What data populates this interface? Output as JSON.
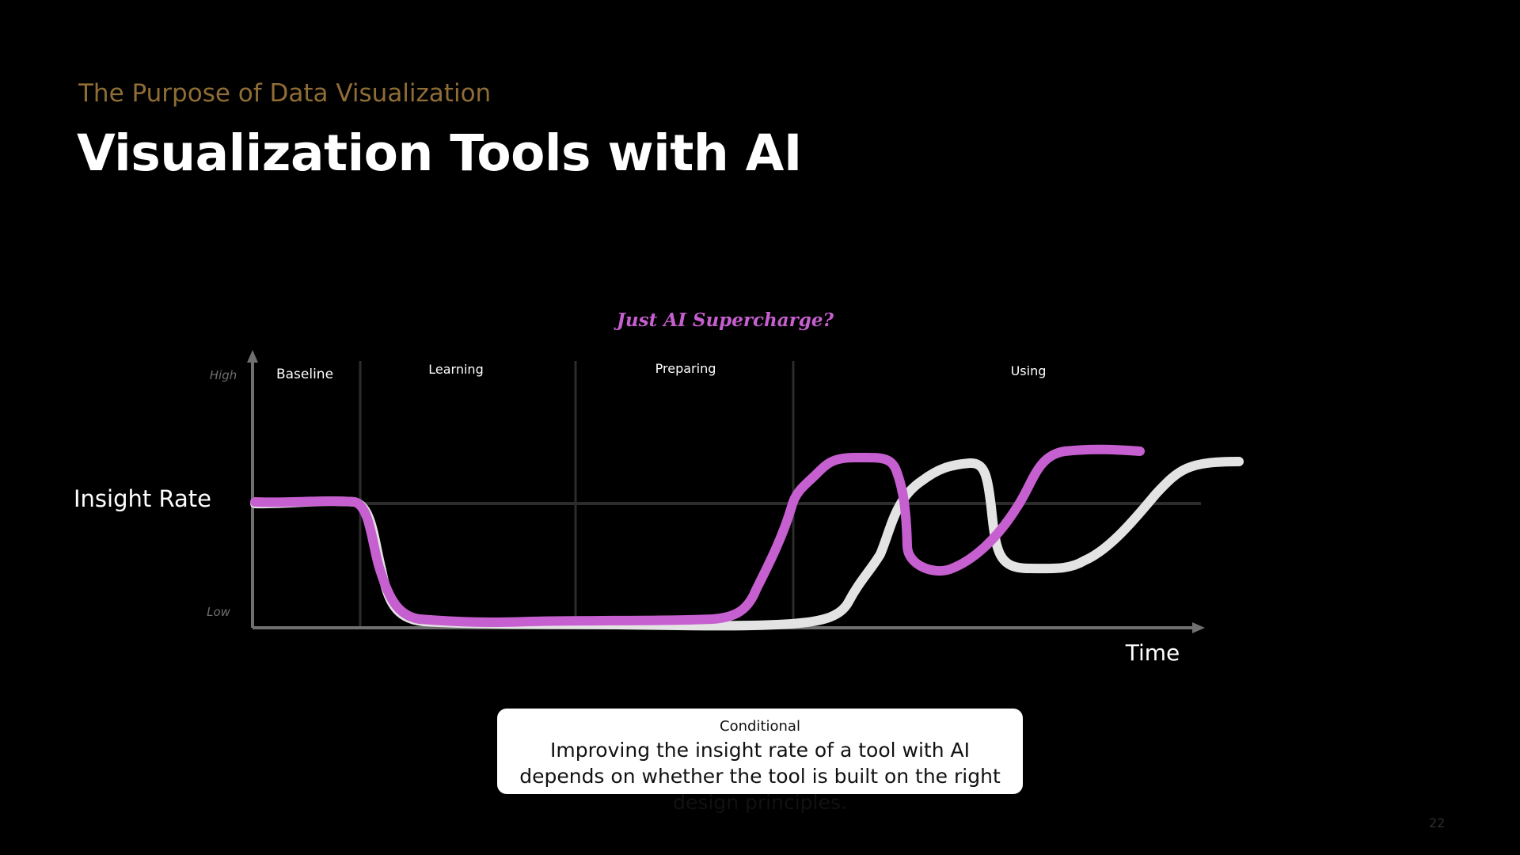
{
  "slide": {
    "kicker": "The Purpose of Data Visualization",
    "title": "Visualization Tools with AI",
    "page_number": "22"
  },
  "chart": {
    "title": "Just AI Supercharge?",
    "y_axis_label": "Insight Rate",
    "x_axis_label": "Time",
    "y_high_label": "High",
    "y_low_label": "Low",
    "phases": [
      "Baseline",
      "Learning",
      "Preparing",
      "Using"
    ]
  },
  "callout": {
    "label": "Conditional",
    "text": "Improving the insight rate of a tool with AI depends on whether the tool is built on the right design principles."
  },
  "colors": {
    "background": "#000000",
    "kicker": "#8f6d35",
    "title": "#ffffff",
    "chart_title": "#c65fcf",
    "ai_curve": "#c65fcf",
    "baseline_curve": "#e3e3e3",
    "axes": "#707070",
    "grid": "#2c2c2c",
    "callout_background": "#ffffff"
  }
}
